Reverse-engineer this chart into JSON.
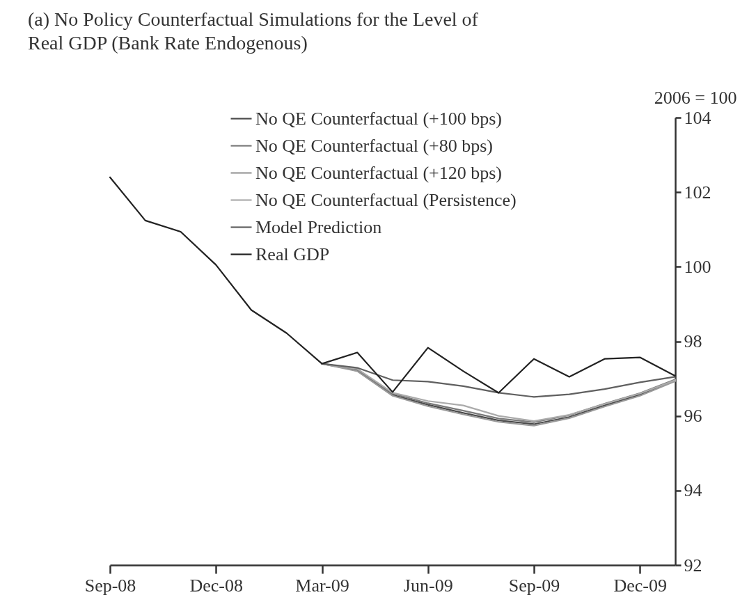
{
  "chart_data": {
    "type": "line",
    "title": "(a) No Policy Counterfactual Simulations for the Level of Real GDP (Bank Rate Endogenous)",
    "ylabel": "2006 = 100",
    "categories": [
      "Sep-08",
      null,
      null,
      "Dec-08",
      null,
      null,
      "Mar-09",
      null,
      null,
      "Jun-09",
      null,
      null,
      "Sep-09",
      null,
      null,
      "Dec-09",
      null
    ],
    "ylim": [
      92,
      104
    ],
    "yticks": [
      92,
      94,
      96,
      98,
      100,
      102,
      104
    ],
    "grid": false,
    "legend": "top",
    "line_style": "solid",
    "marker": "none",
    "series": [
      {
        "name": "No QE Counterfactual (+100 bps)",
        "color": "#4a4a4a",
        "values": [
          null,
          null,
          null,
          null,
          null,
          null,
          97.4,
          97.22,
          96.56,
          96.3,
          96.08,
          95.88,
          95.78,
          95.97,
          96.28,
          96.57,
          96.95
        ]
      },
      {
        "name": "No QE Counterfactual (+80 bps)",
        "color": "#7a7a7a",
        "values": [
          null,
          null,
          null,
          null,
          null,
          null,
          97.4,
          97.25,
          96.6,
          96.34,
          96.14,
          95.93,
          95.83,
          96.02,
          96.33,
          96.61,
          96.98
        ]
      },
      {
        "name": "No QE Counterfactual (+120 bps)",
        "color": "#9a9a9a",
        "values": [
          null,
          null,
          null,
          null,
          null,
          null,
          97.4,
          97.2,
          96.54,
          96.26,
          96.04,
          95.84,
          95.74,
          95.94,
          96.25,
          96.54,
          96.93
        ]
      },
      {
        "name": "No QE Counterfactual (Persistence)",
        "color": "#ababab",
        "values": [
          null,
          null,
          null,
          null,
          null,
          null,
          97.4,
          97.26,
          96.62,
          96.4,
          96.28,
          96.0,
          95.86,
          96.03,
          96.32,
          96.6,
          96.96
        ]
      },
      {
        "name": "Model Prediction",
        "color": "#606060",
        "values": [
          null,
          null,
          null,
          null,
          null,
          null,
          97.4,
          97.29,
          96.96,
          96.92,
          96.8,
          96.62,
          96.51,
          96.58,
          96.72,
          96.9,
          97.05
        ]
      },
      {
        "name": "Real GDP",
        "color": "#222222",
        "values": [
          102.4,
          101.24,
          100.94,
          100.05,
          98.84,
          98.22,
          97.4,
          97.7,
          96.64,
          97.83,
          97.2,
          96.62,
          97.53,
          97.05,
          97.53,
          97.57,
          97.07
        ]
      }
    ]
  }
}
